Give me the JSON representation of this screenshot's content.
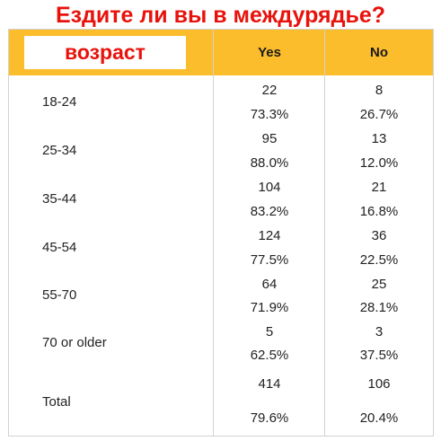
{
  "title": "Ездите ли вы в междурядье?",
  "header": {
    "age_label": "возраст",
    "yes_label": "Yes",
    "no_label": "No"
  },
  "rows": [
    {
      "age": "18-24",
      "yes_count": "22",
      "yes_pct": "73.3%",
      "no_count": "8",
      "no_pct": "26.7%"
    },
    {
      "age": "25-34",
      "yes_count": "95",
      "yes_pct": "88.0%",
      "no_count": "13",
      "no_pct": "12.0%"
    },
    {
      "age": "35-44",
      "yes_count": "104",
      "yes_pct": "83.2%",
      "no_count": "21",
      "no_pct": "16.8%"
    },
    {
      "age": "45-54",
      "yes_count": "124",
      "yes_pct": "77.5%",
      "no_count": "36",
      "no_pct": "22.5%"
    },
    {
      "age": "55-70",
      "yes_count": "64",
      "yes_pct": "71.9%",
      "no_count": "25",
      "no_pct": "28.1%"
    },
    {
      "age": "70 or older",
      "yes_count": "5",
      "yes_pct": "62.5%",
      "no_count": "3",
      "no_pct": "37.5%"
    },
    {
      "age": "Total",
      "yes_count": "414",
      "yes_pct": "79.6%",
      "no_count": "106",
      "no_pct": "20.4%"
    }
  ],
  "colors": {
    "title": "#e8120c",
    "header_band": "#fbbd2c",
    "grid": "#d2d2d2",
    "text": "#222222"
  }
}
